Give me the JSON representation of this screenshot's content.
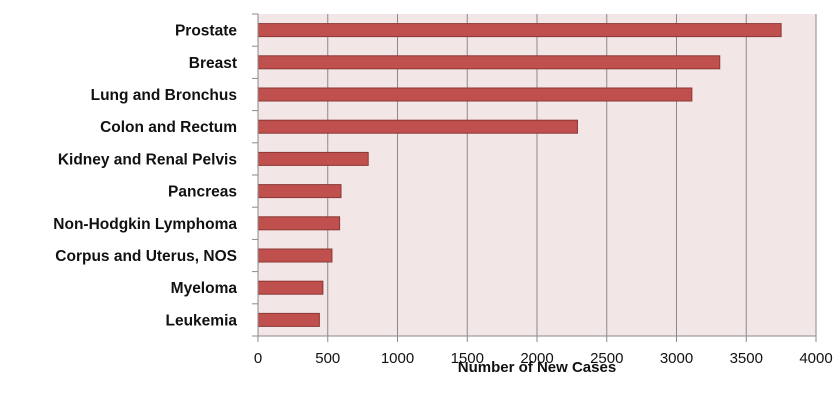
{
  "chart_data": {
    "type": "bar",
    "orientation": "horizontal",
    "title": "",
    "xlabel": "Number of New Cases",
    "ylabel": "",
    "categories": [
      "Prostate",
      "Breast",
      "Lung and Bronchus",
      "Colon and Rectum",
      "Kidney and Renal Pelvis",
      "Pancreas",
      "Non-Hodgkin Lymphoma",
      "Corpus and Uterus, NOS",
      "Myeloma",
      "Leukemia"
    ],
    "values": [
      3750,
      3310,
      3110,
      2290,
      790,
      595,
      585,
      530,
      465,
      440
    ],
    "xlim": [
      0,
      4000
    ],
    "xticks": [
      "0",
      "500",
      "1000",
      "1500",
      "2000",
      "2500",
      "3000",
      "3500",
      "4000"
    ],
    "grid": "vertical",
    "legend": "none",
    "colors": {
      "bar_fill": "#c0504d",
      "bar_stroke": "#8c3836",
      "plot_background": "#f2e6e6",
      "gridline": "#8a8a8a",
      "axis": "#8a8a8a"
    }
  }
}
